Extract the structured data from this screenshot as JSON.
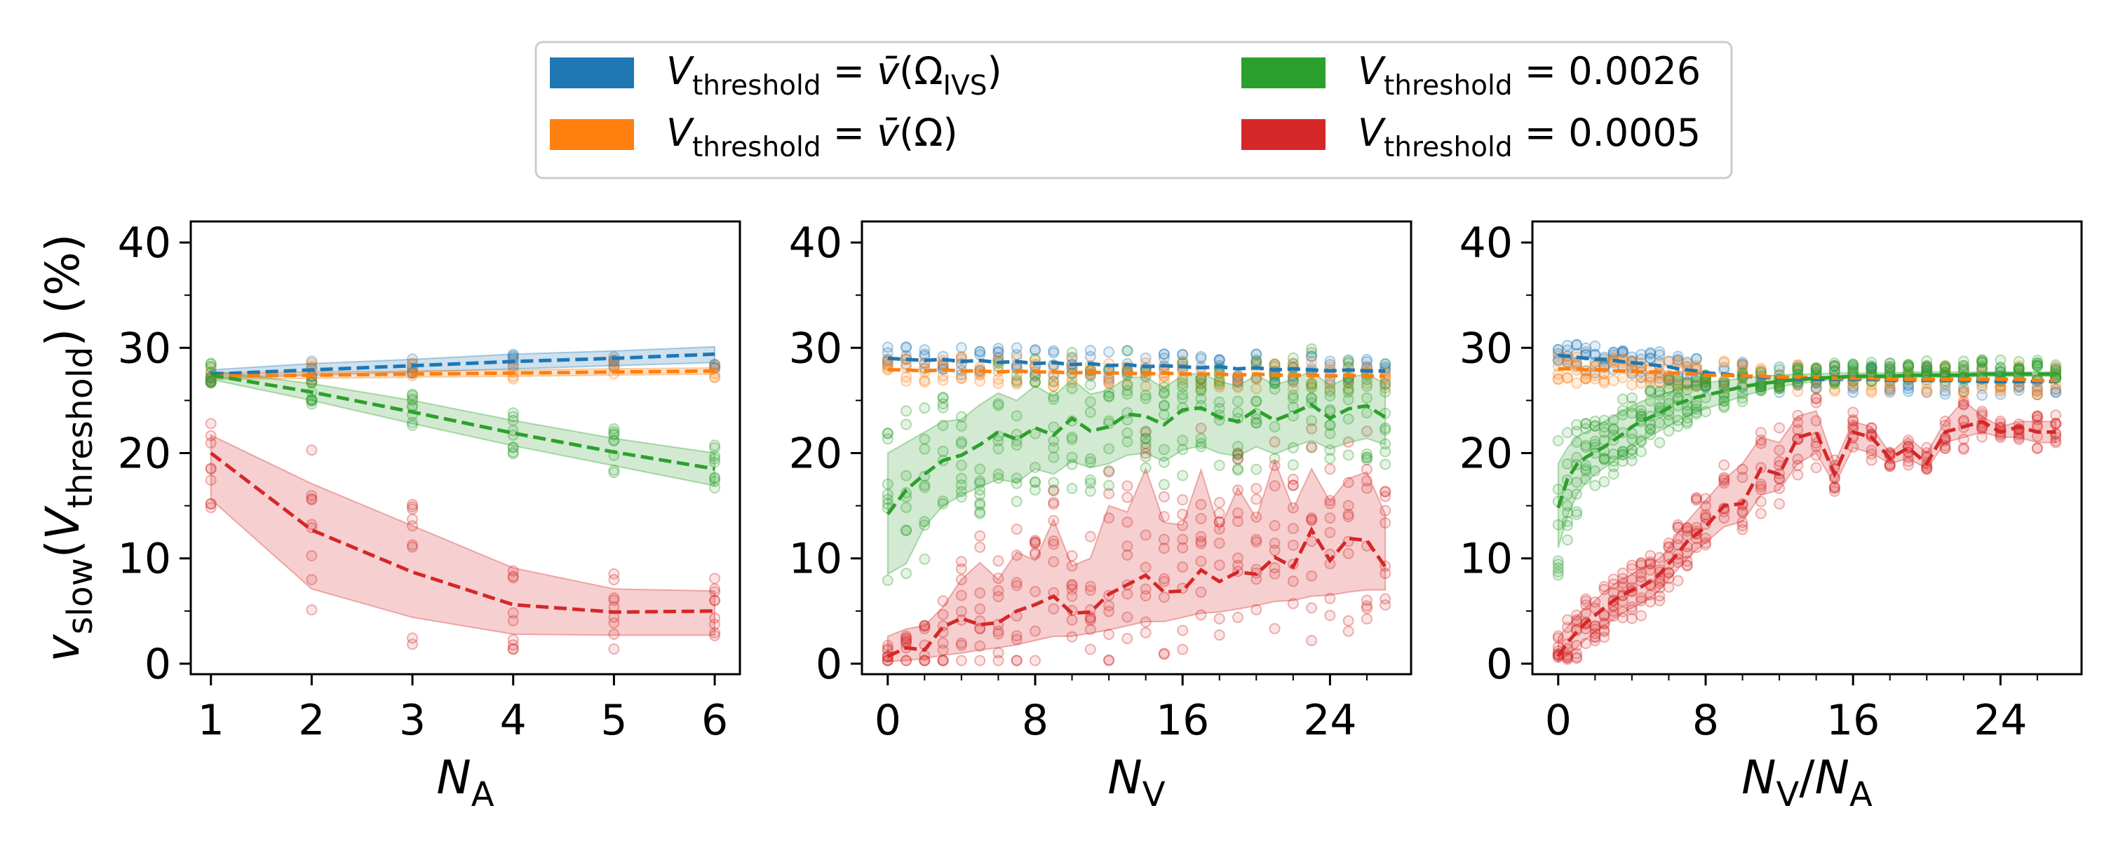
{
  "figure": {
    "ylabel": "vslow(Vthreshold) (%)"
  },
  "legend": {
    "placement": "top-center",
    "ncols": 2,
    "entries": [
      {
        "label": "Vthreshold = v̄(ΩIVS)",
        "color": "#1f77b4"
      },
      {
        "label": "Vthreshold = 0.0026",
        "color": "#2ca02c"
      },
      {
        "label": "Vthreshold = v̄(Ω)",
        "color": "#ff7f0e"
      },
      {
        "label": "Vthreshold = 0.0005",
        "color": "#d62728"
      }
    ]
  },
  "chart_data": [
    {
      "type": "line",
      "xlabel": "NA",
      "ylabel": "vslow(Vthreshold) (%)",
      "xlim": [
        0.8,
        6.25
      ],
      "ylim": [
        -1,
        42
      ],
      "xticks": [
        1,
        2,
        3,
        4,
        5,
        6
      ],
      "yticks": [
        0,
        10,
        20,
        30,
        40
      ],
      "x": [
        1,
        2,
        3,
        4,
        5,
        6
      ],
      "series": [
        {
          "name": "Vthreshold = v̄(ΩIVS)",
          "color": "#1f77b4",
          "values": [
            27.5,
            27.9,
            28.3,
            28.7,
            29.0,
            29.4
          ],
          "band_lower": [
            27.1,
            27.4,
            27.7,
            28.0,
            28.3,
            28.6
          ],
          "band_upper": [
            27.9,
            28.5,
            28.9,
            29.4,
            29.7,
            30.1
          ]
        },
        {
          "name": "Vthreshold = v̄(Ω)",
          "color": "#ff7f0e",
          "values": [
            27.3,
            27.4,
            27.5,
            27.6,
            27.7,
            27.8
          ],
          "band_lower": [
            27.0,
            27.1,
            27.2,
            27.3,
            27.4,
            27.5
          ],
          "band_upper": [
            27.6,
            27.7,
            27.8,
            27.9,
            28.0,
            28.1
          ]
        },
        {
          "name": "Vthreshold = 0.0026",
          "color": "#2ca02c",
          "values": [
            27.4,
            25.8,
            23.9,
            21.9,
            20.1,
            18.5
          ],
          "band_lower": [
            27.0,
            25.0,
            22.8,
            20.7,
            18.8,
            16.9
          ],
          "band_upper": [
            27.8,
            26.6,
            25.0,
            23.1,
            21.4,
            20.0
          ]
        },
        {
          "name": "Vthreshold = 0.0005",
          "color": "#d62728",
          "values": [
            20.0,
            12.7,
            8.7,
            5.6,
            4.9,
            5.0
          ],
          "band_lower": [
            15.6,
            7.1,
            4.4,
            2.8,
            2.7,
            2.7
          ],
          "band_upper": [
            21.7,
            17.1,
            13.1,
            9.1,
            7.1,
            6.9
          ]
        }
      ]
    },
    {
      "type": "line",
      "xlabel": "NV",
      "ylabel": "",
      "xlim": [
        -1.4,
        28.4
      ],
      "ylim": [
        -1,
        42
      ],
      "xticks": [
        0,
        8,
        16,
        24
      ],
      "yticks": [
        0,
        10,
        20,
        30,
        40
      ],
      "x": [
        0,
        1,
        2,
        3,
        4,
        5,
        6,
        7,
        8,
        9,
        10,
        11,
        12,
        13,
        14,
        15,
        16,
        17,
        18,
        19,
        20,
        21,
        22,
        23,
        24,
        25,
        26,
        27
      ],
      "series": [
        {
          "name": "Vthreshold = v̄(ΩIVS)",
          "color": "#1f77b4",
          "values": [
            29.0,
            28.9,
            28.8,
            28.9,
            28.7,
            28.8,
            28.6,
            28.7,
            28.5,
            28.6,
            28.4,
            28.5,
            28.3,
            28.4,
            28.2,
            28.3,
            28.2,
            28.1,
            28.2,
            28.0,
            28.1,
            27.9,
            28.0,
            27.9,
            27.8,
            27.9,
            27.8,
            27.8
          ]
        },
        {
          "name": "Vthreshold = v̄(Ω)",
          "color": "#ff7f0e",
          "values": [
            27.9,
            27.9,
            27.8,
            27.9,
            27.8,
            27.8,
            27.7,
            27.8,
            27.7,
            27.7,
            27.6,
            27.7,
            27.6,
            27.6,
            27.5,
            27.6,
            27.5,
            27.5,
            27.5,
            27.4,
            27.5,
            27.4,
            27.4,
            27.4,
            27.3,
            27.4,
            27.3,
            27.3
          ]
        },
        {
          "name": "Vthreshold = 0.0026",
          "color": "#2ca02c",
          "values": [
            14.2,
            16.5,
            18.0,
            19.3,
            19.8,
            20.8,
            22.0,
            21.3,
            22.4,
            21.7,
            23.3,
            22.1,
            22.5,
            23.7,
            23.5,
            22.7,
            24.1,
            24.3,
            23.4,
            23.0,
            24.1,
            23.1,
            23.8,
            24.6,
            23.3,
            24.2,
            24.5,
            23.4
          ],
          "band_lower": [
            8.5,
            9.5,
            13.0,
            15.0,
            16.0,
            16.8,
            17.5,
            17.2,
            18.5,
            18.0,
            19.2,
            18.6,
            19.0,
            19.8,
            20.0,
            19.2,
            20.3,
            20.7,
            20.0,
            19.7,
            20.6,
            19.9,
            20.6,
            21.2,
            20.4,
            21.0,
            21.4,
            20.8
          ],
          "band_upper": [
            20.0,
            21.0,
            22.0,
            23.0,
            23.2,
            24.6,
            25.7,
            25.0,
            26.4,
            25.4,
            27.0,
            25.6,
            26.0,
            27.2,
            27.2,
            26.2,
            27.4,
            27.6,
            26.8,
            26.4,
            27.4,
            26.5,
            27.0,
            27.8,
            26.4,
            27.2,
            27.5,
            26.6
          ]
        },
        {
          "name": "Vthreshold = 0.0005",
          "color": "#d62728",
          "values": [
            0.7,
            1.5,
            1.3,
            3.5,
            4.3,
            3.7,
            3.9,
            5.0,
            5.6,
            6.4,
            4.8,
            4.9,
            6.6,
            7.5,
            8.4,
            6.8,
            6.9,
            8.9,
            7.8,
            8.7,
            8.5,
            10.1,
            9.2,
            12.7,
            9.8,
            11.9,
            11.7,
            9.2
          ],
          "band_lower": [
            0.2,
            0.3,
            0.5,
            0.8,
            1.0,
            1.3,
            1.5,
            1.8,
            2.2,
            2.6,
            2.6,
            2.9,
            3.2,
            3.6,
            4.0,
            4.0,
            4.4,
            4.8,
            4.9,
            5.2,
            5.5,
            5.9,
            6.0,
            6.4,
            6.5,
            6.8,
            7.0,
            7.0
          ],
          "band_upper": [
            2.6,
            3.3,
            3.6,
            5.4,
            8.0,
            9.6,
            8.0,
            10.6,
            9.8,
            13.7,
            9.3,
            10.0,
            15.0,
            14.4,
            18.5,
            13.4,
            13.2,
            18.4,
            12.7,
            16.7,
            13.8,
            19.3,
            14.7,
            18.5,
            15.4,
            17.6,
            18.2,
            14.2
          ]
        }
      ]
    },
    {
      "type": "line",
      "xlabel": "NV/NA",
      "ylabel": "",
      "xlim": [
        -1.4,
        28.4
      ],
      "ylim": [
        -1,
        42
      ],
      "xticks": [
        0,
        8,
        16,
        24
      ],
      "yticks": [
        0,
        10,
        20,
        30,
        40
      ],
      "x": [
        0,
        0.5,
        1,
        1.5,
        2,
        2.5,
        3,
        3.5,
        4,
        4.5,
        5,
        5.5,
        6,
        6.5,
        7,
        7.5,
        8,
        9,
        10,
        11,
        12,
        13,
        14,
        15,
        16,
        17,
        18,
        19,
        20,
        21,
        22,
        23,
        24,
        25,
        26,
        27
      ],
      "series": [
        {
          "name": "Vthreshold = v̄(ΩIVS)",
          "color": "#1f77b4",
          "values": [
            29.3,
            29.2,
            29.1,
            29.0,
            28.9,
            28.9,
            28.8,
            28.7,
            28.6,
            28.5,
            28.4,
            28.3,
            28.2,
            28.0,
            27.9,
            27.8,
            27.6,
            27.5,
            27.3,
            27.2,
            27.1,
            27.0,
            27.0,
            27.0,
            27.0,
            27.0,
            26.9,
            26.9,
            26.9,
            26.9,
            26.9,
            26.8,
            26.8,
            26.8,
            26.8,
            26.8
          ]
        },
        {
          "name": "Vthreshold = v̄(Ω)",
          "color": "#ff7f0e",
          "values": [
            28.0,
            28.0,
            28.0,
            27.9,
            27.9,
            27.9,
            27.8,
            27.8,
            27.8,
            27.7,
            27.7,
            27.7,
            27.6,
            27.6,
            27.5,
            27.5,
            27.4,
            27.4,
            27.3,
            27.3,
            27.2,
            27.2,
            27.2,
            27.1,
            27.1,
            27.1,
            27.0,
            27.0,
            27.0,
            27.0,
            27.0,
            27.0,
            27.0,
            27.0,
            26.9,
            26.9
          ]
        },
        {
          "name": "Vthreshold = 0.0026",
          "color": "#2ca02c",
          "values": [
            14.8,
            17.5,
            18.9,
            19.6,
            20.1,
            20.6,
            21.2,
            21.8,
            22.5,
            23.0,
            23.4,
            23.8,
            24.3,
            24.7,
            25.0,
            25.3,
            25.5,
            25.9,
            26.3,
            26.6,
            26.8,
            27.0,
            27.1,
            27.2,
            27.3,
            27.3,
            27.3,
            27.4,
            27.4,
            27.4,
            27.4,
            27.5,
            27.5,
            27.5,
            27.5,
            27.5
          ],
          "band_lower": [
            11.0,
            14.0,
            16.0,
            17.2,
            18.0,
            18.6,
            19.2,
            19.8,
            20.5,
            21.1,
            21.6,
            22.1,
            22.6,
            23.1,
            23.5,
            23.9,
            24.2,
            24.8,
            25.4,
            25.9,
            26.3,
            26.6,
            26.8,
            27.0,
            27.1,
            27.1,
            27.1,
            27.2,
            27.2,
            27.2,
            27.2,
            27.3,
            27.3,
            27.3,
            27.3,
            27.3
          ],
          "band_upper": [
            19.0,
            20.5,
            21.5,
            22.0,
            22.5,
            23.0,
            23.5,
            24.0,
            24.5,
            24.9,
            25.2,
            25.5,
            25.8,
            26.1,
            26.3,
            26.5,
            26.7,
            26.9,
            27.1,
            27.3,
            27.4,
            27.5,
            27.5,
            27.6,
            27.6,
            27.6,
            27.6,
            27.7,
            27.7,
            27.7,
            27.7,
            27.7,
            27.7,
            27.7,
            27.7,
            27.7
          ]
        },
        {
          "name": "Vthreshold = 0.0005",
          "color": "#d62728",
          "values": [
            0.7,
            2.0,
            3.0,
            3.9,
            4.6,
            5.3,
            6.0,
            6.5,
            7.0,
            7.3,
            7.8,
            8.5,
            9.5,
            10.5,
            11.6,
            12.3,
            13.0,
            15.0,
            15.2,
            18.5,
            18.0,
            21.5,
            22.0,
            18.0,
            22.0,
            21.5,
            19.5,
            20.5,
            19.0,
            22.0,
            22.5,
            23.0,
            22.0,
            22.5,
            22.0,
            22.0
          ],
          "band_lower": [
            0.2,
            0.8,
            1.5,
            2.3,
            3.0,
            3.6,
            4.2,
            4.8,
            5.3,
            5.7,
            6.2,
            7.0,
            8.0,
            9.0,
            10.0,
            10.8,
            11.5,
            13.0,
            13.5,
            16.0,
            16.5,
            19.0,
            20.0,
            17.0,
            20.5,
            20.0,
            19.0,
            19.5,
            18.5,
            21.0,
            21.5,
            22.0,
            21.5,
            21.5,
            21.0,
            21.0
          ],
          "band_upper": [
            2.5,
            3.5,
            4.5,
            5.3,
            6.0,
            6.8,
            7.5,
            8.0,
            8.5,
            9.0,
            9.5,
            10.0,
            11.0,
            12.5,
            13.5,
            14.5,
            15.5,
            17.5,
            19.0,
            21.5,
            21.0,
            23.5,
            24.0,
            19.0,
            23.0,
            22.5,
            20.0,
            21.5,
            20.0,
            23.0,
            25.0,
            23.5,
            22.5,
            23.0,
            23.0,
            23.0
          ]
        }
      ]
    }
  ]
}
